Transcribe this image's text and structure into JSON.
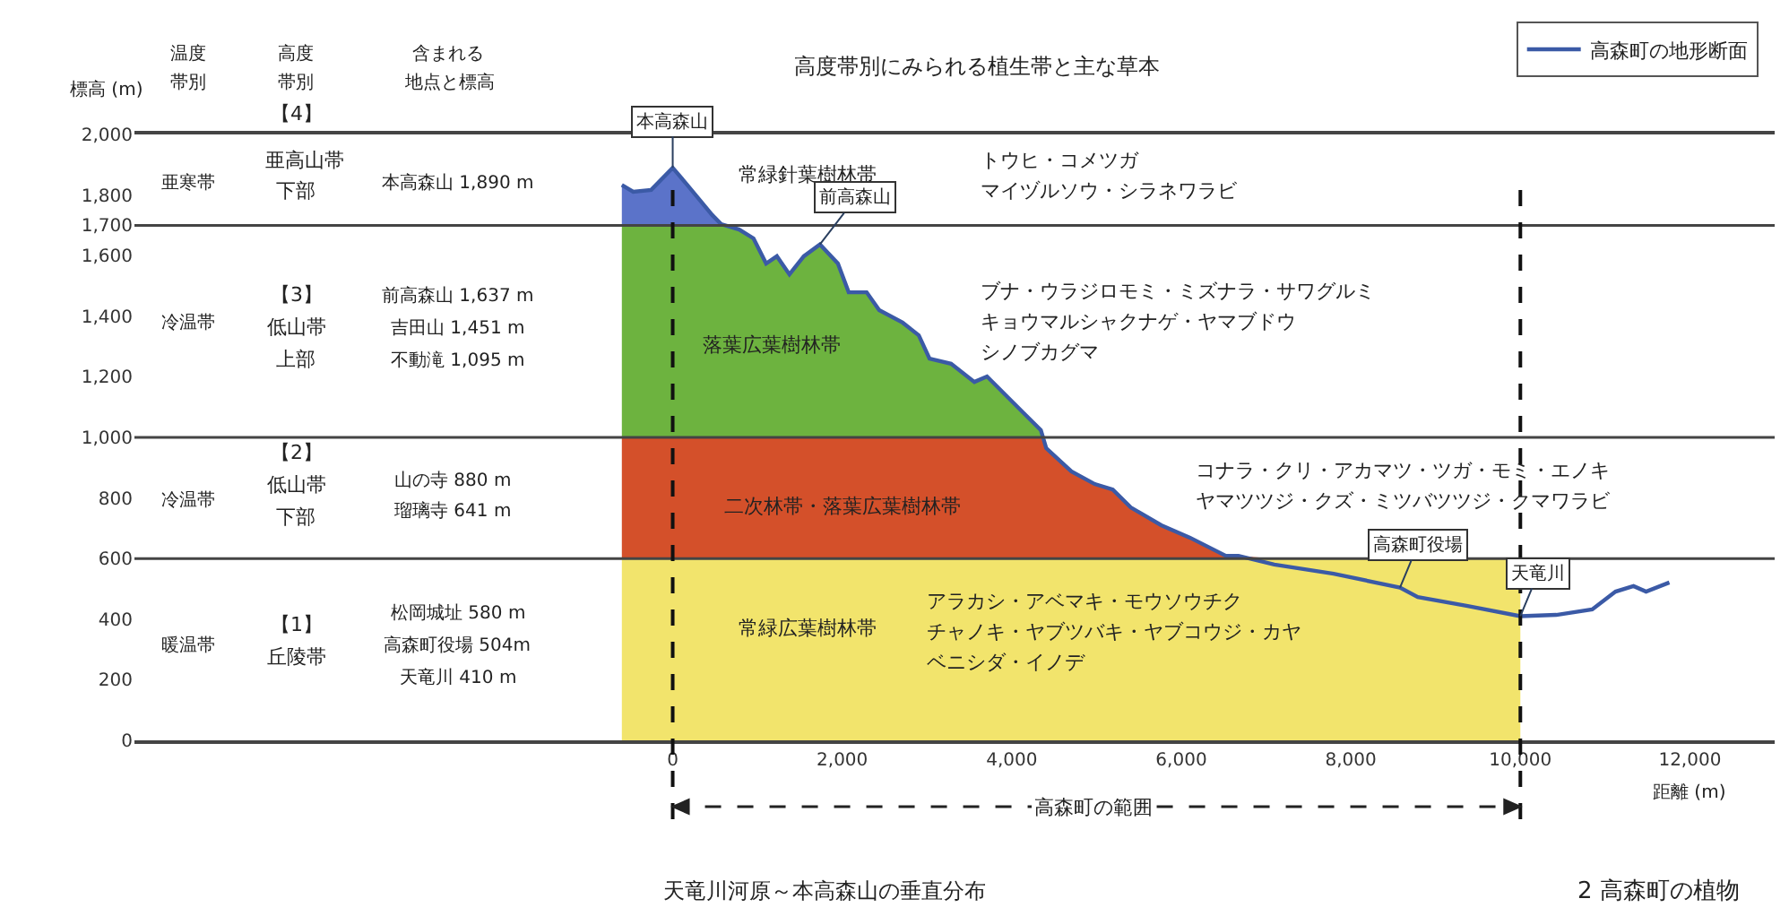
{
  "chart_data": {
    "type": "area",
    "stacked": true,
    "title": "高度帯別にみられる植生帯と主な草本",
    "xlabel": "距離 (m)",
    "ylabel": "標高 (m)",
    "x": [
      -600,
      -466,
      -254,
      0,
      170,
      466,
      572,
      784,
      953,
      1102,
      1229,
      1377,
      1547,
      1737,
      1949,
      2076,
      2288,
      2436,
      2712,
      2903,
      3030,
      3284,
      3559,
      3708,
      3919,
      4131,
      4343,
      4407,
      4703,
      4979,
      5191,
      5403,
      5763,
      6102,
      6525,
      6674,
      7097,
      7797,
      8580,
      8790,
      9364,
      10000
    ],
    "series": [
      {
        "color": "#f2e46c",
        "values": [
          600,
          600,
          600,
          600,
          600,
          600,
          600,
          600,
          600,
          600,
          600,
          600,
          600,
          600,
          600,
          600,
          600,
          600,
          600,
          600,
          600,
          600,
          600,
          600,
          600,
          600,
          600,
          600,
          600,
          600,
          600,
          600,
          600,
          600,
          600,
          600,
          600,
          600,
          600,
          600,
          600,
          600
        ]
      },
      {
        "color": "#d4502a",
        "values": [
          400,
          400,
          400,
          400,
          400,
          400,
          400,
          400,
          400,
          400,
          400,
          400,
          400,
          400,
          400,
          400,
          400,
          400,
          400,
          400,
          400,
          400,
          400,
          400,
          400,
          400,
          400,
          364,
          288,
          246,
          228,
          169,
          110,
          69,
          9,
          9,
          0,
          0,
          0,
          0,
          0,
          0
        ]
      },
      {
        "color": "#6db33f",
        "values": [
          700,
          700,
          700,
          700,
          700,
          700,
          700,
          686,
          657,
          574,
          598,
          538,
          598,
          637,
          574,
          479,
          479,
          420,
          379,
          337,
          260,
          243,
          183,
          201,
          142,
          83,
          24,
          0,
          0,
          0,
          0,
          0,
          0,
          0,
          0,
          0,
          0,
          0,
          0,
          0,
          0,
          0
        ]
      },
      {
        "color": "#5b73c9",
        "values": [
          133,
          111,
          117,
          190,
          134,
          34,
          4,
          0,
          0,
          0,
          0,
          0,
          0,
          0,
          0,
          0,
          0,
          0,
          0,
          0,
          0,
          0,
          0,
          0,
          0,
          0,
          0,
          0,
          0,
          0,
          0,
          0,
          0,
          0,
          0,
          0,
          0,
          0,
          0,
          0,
          0,
          0
        ]
      },
      {
        "type": "line",
        "name": "高森町の地形断面",
        "color": "#3b5aa6",
        "x": [
          -600,
          -466,
          -254,
          0,
          170,
          466,
          572,
          784,
          953,
          1102,
          1229,
          1377,
          1547,
          1737,
          1949,
          2076,
          2288,
          2436,
          2712,
          2903,
          3030,
          3284,
          3559,
          3708,
          3919,
          4131,
          4343,
          4407,
          4703,
          4979,
          5191,
          5403,
          5763,
          6102,
          6525,
          6674,
          7097,
          7797,
          8580,
          8790,
          9364,
          10000,
          10424,
          10847,
          11123,
          11335,
          11483,
          11758
        ],
        "values": [
          1833,
          1811,
          1817,
          1890,
          1834,
          1734,
          1704,
          1686,
          1657,
          1574,
          1598,
          1538,
          1598,
          1637,
          1574,
          1479,
          1479,
          1420,
          1379,
          1337,
          1260,
          1243,
          1183,
          1201,
          1142,
          1083,
          1024,
          964,
          888,
          846,
          828,
          769,
          710,
          669,
          609,
          609,
          580,
          550,
          504,
          473,
          444,
          410,
          414,
          432,
          491,
          509,
          491,
          521
        ]
      }
    ],
    "xlim": [
      -6350,
      13000
    ],
    "ylim": [
      0,
      2000
    ],
    "xticks": [
      0,
      {
        "value": 2000,
        "label": "2,000"
      },
      {
        "value": 4000,
        "label": "4,000"
      },
      {
        "value": 6000,
        "label": "6,000"
      },
      {
        "value": 8000,
        "label": "8,000"
      },
      {
        "value": 10000,
        "label": "10,000"
      },
      {
        "value": 12000,
        "label": "12,000"
      }
    ],
    "yticks": [
      0,
      200,
      400,
      600,
      800,
      {
        "value": 1000,
        "label": "1,000"
      },
      {
        "value": 1200,
        "label": "1,200"
      },
      {
        "value": 1400,
        "label": "1,400"
      },
      {
        "value": 1600,
        "label": "1,600"
      },
      {
        "value": 1700,
        "label": "1,700"
      },
      {
        "value": 1800,
        "label": "1,800"
      },
      {
        "value": 2000,
        "label": "2,000"
      }
    ],
    "ref_lines": [
      {
        "axis": "y",
        "value": 1700,
        "color": "#444444"
      },
      {
        "axis": "y",
        "value": 1000,
        "color": "#444444"
      },
      {
        "axis": "y",
        "value": 600,
        "color": "#444444"
      },
      {
        "axis": "x",
        "value": 0,
        "color": "#111111",
        "line_style": "dashed"
      },
      {
        "axis": "x",
        "value": 10000,
        "color": "#111111",
        "line_style": "dashed"
      }
    ],
    "legend": "top right",
    "annotations": [
      "温度",
      "帯別",
      "高度",
      "帯別",
      "含まれる",
      "地点と標高",
      "亜寒帯",
      "【4】",
      "亜高山帯",
      "下部",
      "本高森山 1,890 m",
      "冷温帯",
      "【3】",
      "低山帯",
      "上部",
      "前高森山 1,637 m",
      "吉田山 1,451 m",
      "不動滝 1,095 m",
      "冷温帯",
      "【2】",
      "低山帯",
      "下部",
      "山の寺 880 m",
      "瑠璃寺 641 m",
      "暖温帯",
      "【1】",
      "丘陵帯",
      "松岡城址 580 m",
      "高森町役場 504m",
      "天竜川 410 m",
      "常緑針葉樹林帯",
      "トウヒ・コメツガ",
      "マイヅルソウ・シラネワラビ",
      "落葉広葉樹林帯",
      "ブナ・ウラジロモミ・ミズナラ・サワグルミ",
      "キョウマルシャクナゲ・ヤマブドウ",
      "シノブカグマ",
      "二次林帯・落葉広葉樹林帯",
      "コナラ・クリ・アカマツ・ツガ・モミ・エノキ",
      "ヤマツツジ・クズ・ミツバツツジ・クマワラビ",
      "常緑広葉樹林帯",
      "アラカシ・アベマキ・モウソウチク",
      "チャノキ・ヤブツバキ・ヤブコウジ・カヤ",
      "ベニシダ・イノデ",
      "高森町の範囲",
      "天竜川河原～本高森山の垂直分布",
      "2 高森町の植物",
      {
        "text": "本高森山",
        "x": 0,
        "y": 1890
      },
      {
        "text": "前高森山",
        "x": 1737,
        "y": 1637
      },
      {
        "text": "高森町役場",
        "x": 8580,
        "y": 504
      },
      {
        "text": "天竜川",
        "x": 10000,
        "y": 410
      }
    ]
  }
}
